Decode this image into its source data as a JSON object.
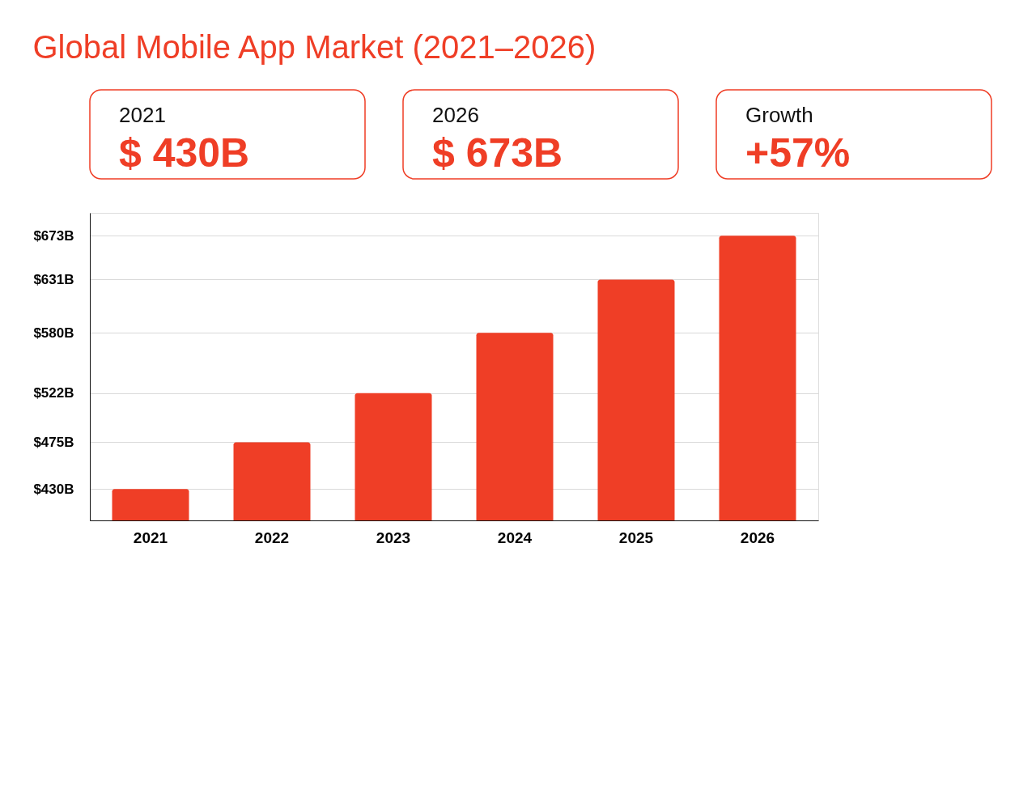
{
  "chart_data": {
    "type": "bar",
    "title": "Global Mobile App Market (2021–2026)",
    "annotations": [
      "2021",
      "$ 430B",
      "2026",
      "$ 673B",
      "Growth",
      "+57%"
    ],
    "categories": [
      "2021",
      "2022",
      "2023",
      "2024",
      "2025",
      "2026"
    ],
    "values": [
      430,
      475,
      522,
      580,
      631,
      673
    ],
    "color": "#ef3e26",
    "ylim": [
      400,
      695
    ],
    "yticks": [
      {
        "value": 430,
        "label": "$430B"
      },
      {
        "value": 475,
        "label": "$475B"
      },
      {
        "value": 522,
        "label": "$522B"
      },
      {
        "value": 580,
        "label": "$580B"
      },
      {
        "value": 631,
        "label": "$631B"
      },
      {
        "value": 673,
        "label": "$673B"
      }
    ],
    "grid": "y"
  }
}
